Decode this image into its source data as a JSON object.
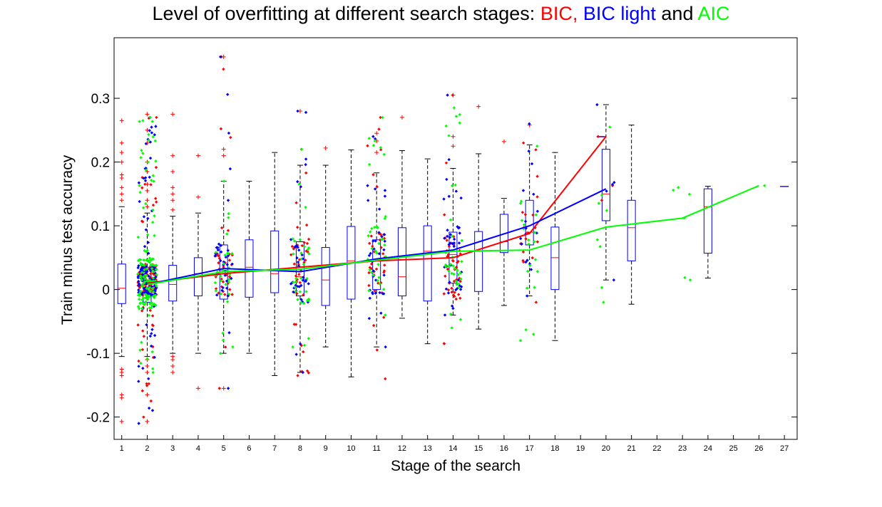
{
  "title": {
    "prefix": "Level of overfitting at different search stages:",
    "bic": "BIC,",
    "bic_light": "BIC light",
    "and": "and",
    "aic": "AIC",
    "colors": {
      "text": "#000000",
      "bic": "#ff0000",
      "bic_light": "#0000ff",
      "aic": "#00ff00"
    }
  },
  "chart_data": {
    "type": "box-scatter-line",
    "xlabel": "Stage of the search",
    "ylabel": "Train minus test accuracy",
    "xlim": [
      0.7,
      27.5
    ],
    "ylim": [
      -0.235,
      0.395
    ],
    "yticks": [
      -0.2,
      -0.1,
      0,
      0.1,
      0.2,
      0.3
    ],
    "yticklabels": [
      "-0.2",
      "-0.1",
      "0",
      "0.1",
      "0.2",
      "0.3"
    ],
    "xticks": [
      1,
      2,
      3,
      4,
      5,
      6,
      7,
      8,
      9,
      10,
      11,
      12,
      13,
      14,
      15,
      16,
      17,
      18,
      19,
      20,
      21,
      22,
      23,
      24,
      25,
      26,
      27
    ],
    "xticklabels": [
      "1",
      "2",
      "3",
      "4",
      "5",
      "6",
      "7",
      "8",
      "9",
      "10",
      "11",
      "12",
      "13",
      "14",
      "15",
      "16",
      "17",
      "18",
      "19",
      "20",
      "21",
      "22",
      "23",
      "24",
      "25",
      "26",
      "27"
    ],
    "grid": false,
    "series": [
      {
        "name": "BIC",
        "color": "#ff0000",
        "mean_line": {
          "x": [
            2,
            5,
            8,
            11,
            14,
            17,
            20
          ],
          "y": [
            0.01,
            0.025,
            0.035,
            0.045,
            0.05,
            0.088,
            0.24
          ]
        },
        "clusters": [
          {
            "x": 2,
            "min": -0.2,
            "max": 0.27,
            "q1": -0.01,
            "q3": 0.04,
            "n": 130
          },
          {
            "x": 5,
            "min": -0.155,
            "max": 0.365,
            "q1": -0.01,
            "q3": 0.06,
            "n": 35
          },
          {
            "x": 8,
            "min": -0.135,
            "max": 0.22,
            "q1": -0.02,
            "q3": 0.08,
            "n": 38
          },
          {
            "x": 11,
            "min": -0.14,
            "max": 0.27,
            "q1": -0.02,
            "q3": 0.09,
            "n": 38
          },
          {
            "x": 14,
            "min": -0.085,
            "max": 0.305,
            "q1": -0.02,
            "q3": 0.09,
            "n": 40
          },
          {
            "x": 17,
            "min": -0.02,
            "max": 0.23,
            "q1": 0.02,
            "q3": 0.15,
            "n": 18
          },
          {
            "x": 20,
            "min": 0.14,
            "max": 0.24,
            "q1": 0.15,
            "q3": 0.24,
            "n": 3
          }
        ]
      },
      {
        "name": "BIC light",
        "color": "#0000ff",
        "mean_line": {
          "x": [
            2,
            5,
            8,
            11,
            14,
            17,
            20
          ],
          "y": [
            0.008,
            0.033,
            0.028,
            0.048,
            0.062,
            0.1,
            0.158
          ]
        },
        "clusters": [
          {
            "x": 2,
            "min": -0.21,
            "max": 0.27,
            "q1": -0.01,
            "q3": 0.04,
            "n": 140
          },
          {
            "x": 5,
            "min": -0.155,
            "max": 0.365,
            "q1": -0.01,
            "q3": 0.07,
            "n": 35
          },
          {
            "x": 8,
            "min": -0.13,
            "max": 0.28,
            "q1": -0.02,
            "q3": 0.08,
            "n": 38
          },
          {
            "x": 11,
            "min": -0.09,
            "max": 0.24,
            "q1": -0.02,
            "q3": 0.09,
            "n": 36
          },
          {
            "x": 14,
            "min": -0.04,
            "max": 0.305,
            "q1": 0.0,
            "q3": 0.1,
            "n": 40
          },
          {
            "x": 17,
            "min": -0.01,
            "max": 0.26,
            "q1": 0.03,
            "q3": 0.15,
            "n": 18
          },
          {
            "x": 20,
            "min": 0.015,
            "max": 0.29,
            "q1": 0.1,
            "q3": 0.22,
            "n": 5
          }
        ]
      },
      {
        "name": "AIC",
        "color": "#00ff00",
        "mean_line": {
          "x": [
            2,
            5,
            8,
            11,
            14,
            17,
            20,
            23,
            26
          ],
          "y": [
            0.008,
            0.028,
            0.032,
            0.046,
            0.06,
            0.062,
            0.098,
            0.112,
            0.163
          ]
        },
        "clusters": [
          {
            "x": 2,
            "min": -0.13,
            "max": 0.27,
            "q1": -0.03,
            "q3": 0.05,
            "n": 140
          },
          {
            "x": 5,
            "min": -0.1,
            "max": 0.17,
            "q1": -0.02,
            "q3": 0.06,
            "n": 30
          },
          {
            "x": 8,
            "min": -0.09,
            "max": 0.22,
            "q1": -0.03,
            "q3": 0.08,
            "n": 32
          },
          {
            "x": 11,
            "min": -0.04,
            "max": 0.27,
            "q1": 0.0,
            "q3": 0.1,
            "n": 34
          },
          {
            "x": 14,
            "min": -0.06,
            "max": 0.285,
            "q1": 0.0,
            "q3": 0.1,
            "n": 34
          },
          {
            "x": 17,
            "min": -0.08,
            "max": 0.225,
            "q1": -0.02,
            "q3": 0.12,
            "n": 20
          },
          {
            "x": 20,
            "min": -0.02,
            "max": 0.255,
            "q1": 0.0,
            "q3": 0.14,
            "n": 8
          },
          {
            "x": 23,
            "min": 0.015,
            "max": 0.16,
            "q1": 0.02,
            "q3": 0.16,
            "n": 6
          },
          {
            "x": 26,
            "min": 0.163,
            "max": 0.163,
            "q1": 0.163,
            "q3": 0.163,
            "n": 1
          }
        ]
      }
    ],
    "boxplots": [
      {
        "x": 1,
        "median": 0.002,
        "q1": -0.022,
        "q3": 0.04,
        "whisker_low": -0.105,
        "whisker_high": 0.13,
        "outliers": [
          -0.207,
          -0.17,
          -0.165,
          -0.135,
          -0.13,
          -0.125,
          0.14,
          0.15,
          0.16,
          0.175,
          0.18,
          0.2,
          0.215,
          0.23,
          0.265
        ]
      },
      {
        "x": 2,
        "median": 0.004,
        "q1": -0.02,
        "q3": 0.035,
        "whisker_low": -0.105,
        "whisker_high": 0.12,
        "outliers": [
          -0.207,
          -0.165,
          -0.13,
          -0.12,
          -0.11,
          0.13,
          0.14,
          0.155,
          0.165,
          0.185,
          0.2,
          0.23,
          0.25,
          0.275
        ]
      },
      {
        "x": 3,
        "median": 0.008,
        "q1": -0.018,
        "q3": 0.038,
        "whisker_low": -0.1,
        "whisker_high": 0.115,
        "outliers": [
          -0.13,
          -0.12,
          -0.11,
          -0.105,
          0.125,
          0.14,
          0.15,
          0.16,
          0.185,
          0.21,
          0.275
        ]
      },
      {
        "x": 4,
        "median": 0.025,
        "q1": -0.01,
        "q3": 0.05,
        "whisker_low": -0.1,
        "whisker_high": 0.12,
        "outliers": [
          -0.155,
          0.145,
          0.21
        ]
      },
      {
        "x": 5,
        "median": 0.03,
        "q1": -0.015,
        "q3": 0.07,
        "whisker_low": -0.1,
        "whisker_high": 0.17,
        "outliers": [
          -0.155,
          0.21,
          0.22,
          0.365
        ]
      },
      {
        "x": 6,
        "median": 0.035,
        "q1": -0.012,
        "q3": 0.078,
        "whisker_low": -0.1,
        "whisker_high": 0.17,
        "outliers": []
      },
      {
        "x": 7,
        "median": 0.025,
        "q1": -0.005,
        "q3": 0.092,
        "whisker_low": -0.135,
        "whisker_high": 0.215,
        "outliers": []
      },
      {
        "x": 8,
        "median": 0.02,
        "q1": -0.01,
        "q3": 0.075,
        "whisker_low": -0.13,
        "whisker_high": 0.195,
        "outliers": [
          0.28
        ]
      },
      {
        "x": 9,
        "median": 0.015,
        "q1": -0.025,
        "q3": 0.066,
        "whisker_low": -0.09,
        "whisker_high": 0.195,
        "outliers": [
          0.222
        ]
      },
      {
        "x": 10,
        "median": 0.045,
        "q1": -0.015,
        "q3": 0.099,
        "whisker_low": -0.137,
        "whisker_high": 0.219,
        "outliers": []
      },
      {
        "x": 11,
        "median": 0.045,
        "q1": 0.0,
        "q3": 0.078,
        "whisker_low": -0.09,
        "whisker_high": 0.183,
        "outliers": [
          0.215,
          0.233,
          0.245
        ]
      },
      {
        "x": 12,
        "median": 0.02,
        "q1": -0.01,
        "q3": 0.097,
        "whisker_low": -0.045,
        "whisker_high": 0.218,
        "outliers": [
          0.27
        ]
      },
      {
        "x": 13,
        "median": 0.06,
        "q1": -0.018,
        "q3": 0.1,
        "whisker_low": -0.085,
        "whisker_high": 0.205,
        "outliers": []
      },
      {
        "x": 14,
        "median": 0.055,
        "q1": 0.01,
        "q3": 0.09,
        "whisker_low": -0.04,
        "whisker_high": 0.19,
        "outliers": [
          0.225,
          0.24,
          0.305
        ]
      },
      {
        "x": 15,
        "median": 0.06,
        "q1": -0.003,
        "q3": 0.091,
        "whisker_low": -0.062,
        "whisker_high": 0.213,
        "outliers": [
          0.287
        ]
      },
      {
        "x": 16,
        "median": 0.075,
        "q1": 0.058,
        "q3": 0.118,
        "whisker_low": -0.025,
        "whisker_high": 0.143,
        "outliers": [
          0.232
        ]
      },
      {
        "x": 17,
        "median": 0.09,
        "q1": 0.07,
        "q3": 0.14,
        "whisker_low": -0.01,
        "whisker_high": 0.227,
        "outliers": [
          0.258
        ]
      },
      {
        "x": 18,
        "median": 0.05,
        "q1": 0.0,
        "q3": 0.098,
        "whisker_low": -0.08,
        "whisker_high": 0.215,
        "outliers": []
      },
      {
        "x": 19.8,
        "median": 0.24,
        "q1": 0.24,
        "q3": 0.24,
        "whisker_low": 0.24,
        "whisker_high": 0.24,
        "outliers": []
      },
      {
        "x": 20,
        "median": 0.15,
        "q1": 0.108,
        "q3": 0.22,
        "whisker_low": 0.015,
        "whisker_high": 0.29,
        "outliers": []
      },
      {
        "x": 21,
        "median": 0.097,
        "q1": 0.045,
        "q3": 0.14,
        "whisker_low": -0.023,
        "whisker_high": 0.258,
        "outliers": []
      },
      {
        "x": 24,
        "median": 0.13,
        "q1": 0.057,
        "q3": 0.158,
        "whisker_low": 0.018,
        "whisker_high": 0.162,
        "outliers": []
      },
      {
        "x": 27,
        "median": 0.162,
        "q1": 0.162,
        "q3": 0.162,
        "whisker_low": 0.162,
        "whisker_high": 0.162,
        "outliers": []
      }
    ]
  }
}
